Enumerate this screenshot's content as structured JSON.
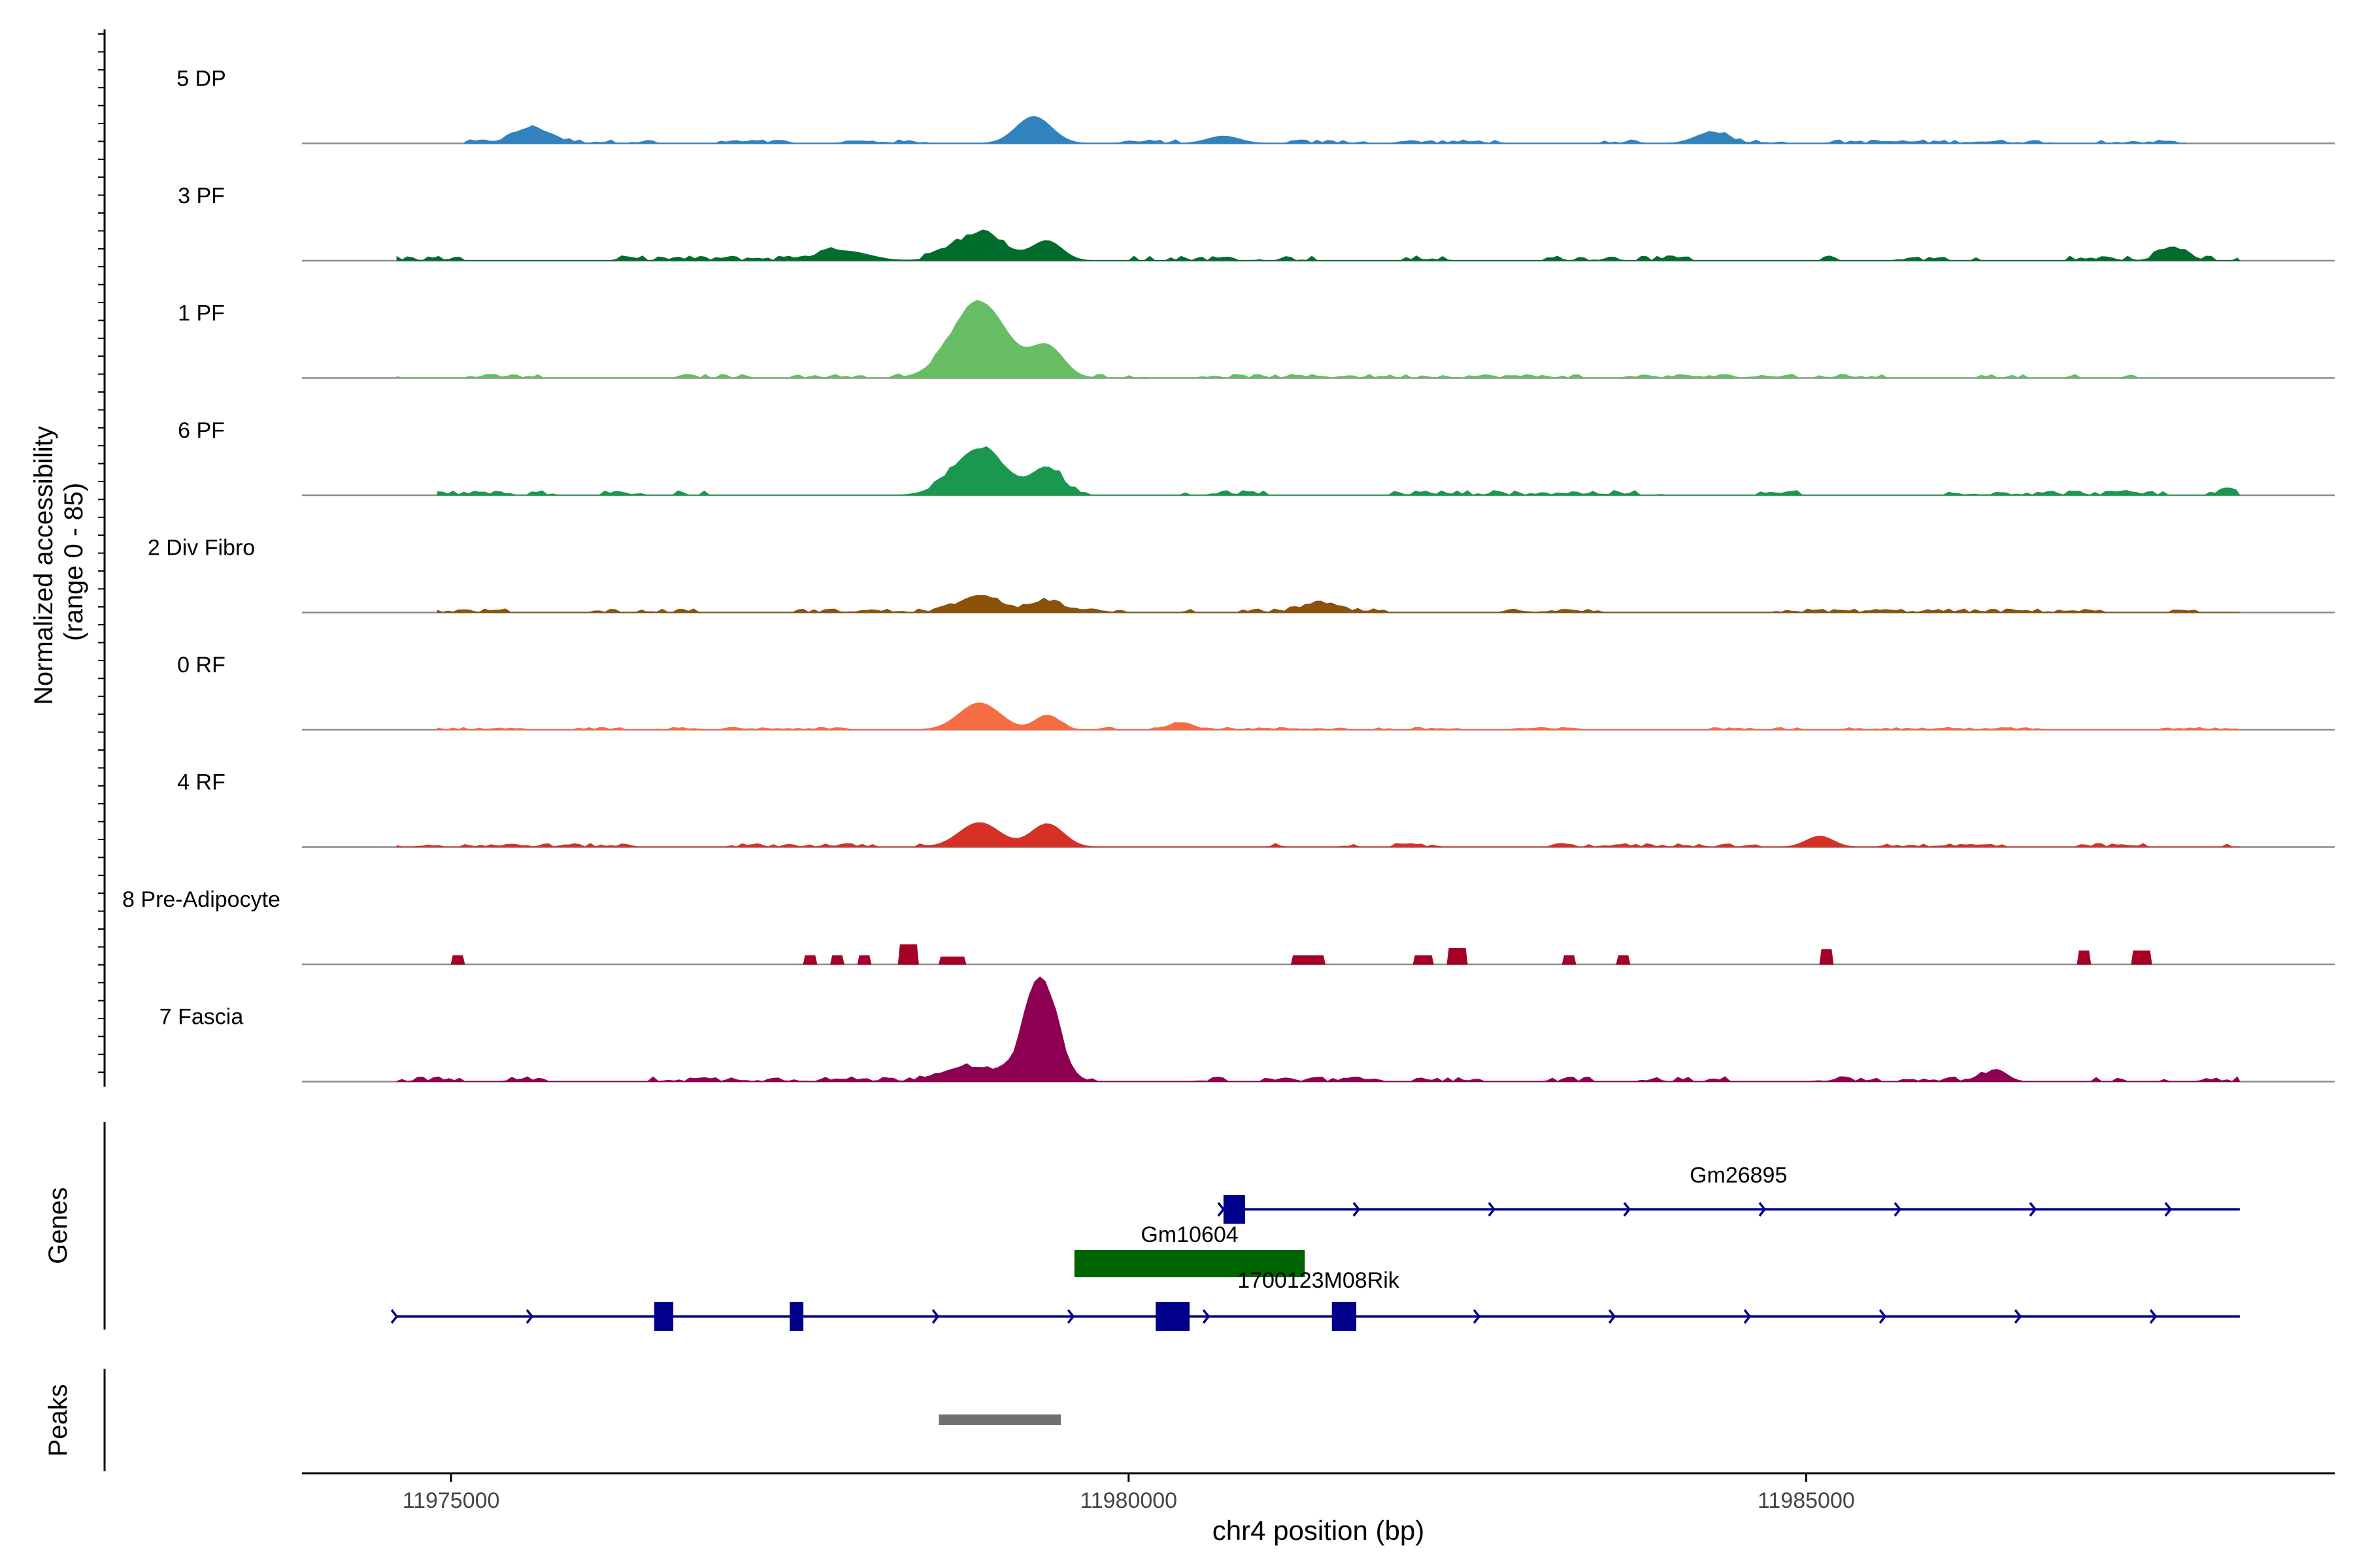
{
  "chart_data": {
    "type": "area",
    "title": "",
    "y_axis_title_line1": "Normalized accessibility",
    "y_axis_title_line2": "(range 0 - 85)",
    "ylim": [
      0,
      85
    ],
    "xlabel": "chr4 position (bp)",
    "xlim": [
      11973900,
      11988900
    ],
    "x_ticks": [
      {
        "value": 11975000,
        "label": "11975000"
      },
      {
        "value": 11980000,
        "label": "11980000"
      },
      {
        "value": 11985000,
        "label": "11985000"
      }
    ],
    "coverage_tracks": [
      {
        "name": "5 DP",
        "color": "#3182BD",
        "style": "smooth",
        "x_start": 11975100,
        "x_end": 11987800,
        "peaks": [
          [
            11975600,
            12,
            130
          ],
          [
            11979300,
            22,
            130
          ],
          [
            11984300,
            9,
            120
          ],
          [
            11980700,
            6,
            120
          ]
        ],
        "noise": 3
      },
      {
        "name": "3 PF",
        "color": "#006D2C",
        "style": "smooth",
        "x_start": 11974600,
        "x_end": 11988200,
        "peaks": [
          [
            11977900,
            8,
            180
          ],
          [
            11978900,
            22,
            180
          ],
          [
            11979400,
            16,
            110
          ],
          [
            11987700,
            9,
            100
          ]
        ],
        "noise": 4
      },
      {
        "name": "1 PF",
        "color": "#66BD63",
        "style": "smooth",
        "x_start": 11974600,
        "x_end": 11987600,
        "peaks": [
          [
            11978900,
            62,
            200
          ],
          [
            11979400,
            25,
            120
          ]
        ],
        "noise": 3
      },
      {
        "name": "6 PF",
        "color": "#1A9850",
        "style": "smooth",
        "x_start": 11974900,
        "x_end": 11988200,
        "peaks": [
          [
            11978900,
            38,
            190
          ],
          [
            11979400,
            22,
            110
          ],
          [
            11988100,
            6,
            40
          ]
        ],
        "noise": 4
      },
      {
        "name": "2 Div Fibro",
        "color": "#8C510A",
        "style": "smooth",
        "x_start": 11974900,
        "x_end": 11988200,
        "peaks": [
          [
            11978900,
            14,
            150
          ],
          [
            11979400,
            9,
            110
          ],
          [
            11981400,
            7,
            120
          ]
        ],
        "noise": 3
      },
      {
        "name": "0 RF",
        "color": "#F46D43",
        "style": "smooth",
        "x_start": 11974900,
        "x_end": 11988200,
        "peaks": [
          [
            11978900,
            22,
            150
          ],
          [
            11979400,
            12,
            90
          ],
          [
            11980400,
            6,
            80
          ]
        ],
        "noise": 2
      },
      {
        "name": "4 RF",
        "color": "#D73027",
        "style": "smooth",
        "x_start": 11974600,
        "x_end": 11988200,
        "peaks": [
          [
            11978900,
            20,
            150
          ],
          [
            11979400,
            19,
            120
          ],
          [
            11985100,
            9,
            100
          ]
        ],
        "noise": 3
      },
      {
        "name": "8 Pre-Adipocyte",
        "color": "#A50026",
        "style": "blocky",
        "x_start": 11975000,
        "x_end": 11987600,
        "blocks": [
          [
            11975000,
            11975100,
            7
          ],
          [
            11977600,
            11977700,
            7
          ],
          [
            11977800,
            11977900,
            7
          ],
          [
            11978000,
            11978100,
            7
          ],
          [
            11978300,
            11978450,
            16
          ],
          [
            11978600,
            11978800,
            6
          ],
          [
            11981200,
            11981450,
            7
          ],
          [
            11982100,
            11982250,
            7
          ],
          [
            11982350,
            11982500,
            13
          ],
          [
            11983200,
            11983300,
            7
          ],
          [
            11983600,
            11983700,
            7
          ],
          [
            11985100,
            11985200,
            12
          ],
          [
            11987000,
            11987100,
            11
          ],
          [
            11987400,
            11987550,
            11
          ]
        ]
      },
      {
        "name": "7 Fascia",
        "color": "#8E0152",
        "style": "smooth",
        "x_start": 11974600,
        "x_end": 11988200,
        "peaks": [
          [
            11978800,
            12,
            180
          ],
          [
            11979350,
            85,
            120
          ],
          [
            11986400,
            10,
            80
          ]
        ],
        "noise": 4
      }
    ],
    "genes_track_label": "Genes",
    "genes": [
      {
        "name": "Gm26895",
        "color": "#00008B",
        "row": 0,
        "start": 11980700,
        "end": 11988200,
        "strand": "+",
        "exons": [
          [
            11980700,
            11980860
          ]
        ],
        "label_x": 11984500
      },
      {
        "name": "Gm10604",
        "color": "#006400",
        "row": 1,
        "start": 11979600,
        "end": 11981300,
        "strand": "+",
        "exons": [
          [
            11979600,
            11981300
          ]
        ],
        "label_x": 11980450
      },
      {
        "name": "1700123M08Rik",
        "color": "#00008B",
        "row": 2,
        "start": 11974600,
        "end": 11988200,
        "strand": "+",
        "exons": [
          [
            11976500,
            11976640
          ],
          [
            11977500,
            11977600
          ],
          [
            11980200,
            11980450
          ],
          [
            11981500,
            11981680
          ]
        ],
        "label_x": 11981400
      }
    ],
    "peaks_track_label": "Peaks",
    "peaks_color": "#707070",
    "peak_regions": [
      [
        11978600,
        11979500
      ]
    ]
  }
}
